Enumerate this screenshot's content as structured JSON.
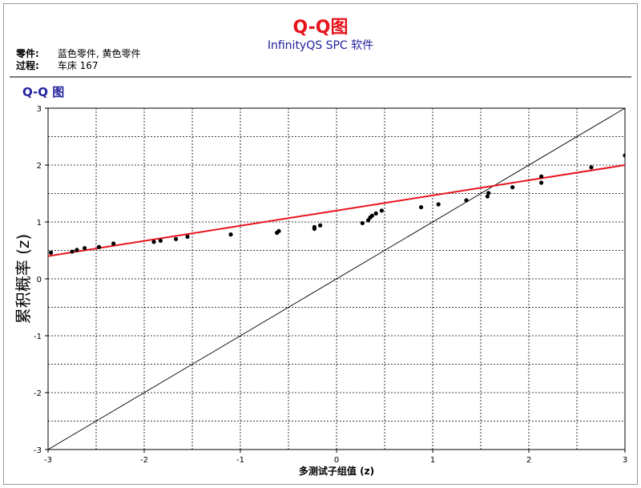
{
  "header": {
    "title": "Q-Q图",
    "subtitle": "InfinityQS SPC 软件",
    "part_label": "零件:",
    "part_value": "蓝色零件, 黄色零件",
    "process_label": "过程:",
    "process_value": "车床 167"
  },
  "panel_title": "Q-Q 图",
  "colors": {
    "title": "#e8141c",
    "subtitle": "#1f1f9e",
    "fit_line": "#e8141c",
    "reference_line": "#000000",
    "points": "#000000"
  },
  "chart_data": {
    "type": "scatter",
    "xlabel": "多测试子组值 (z)",
    "ylabel": "累积概率 (z)",
    "xlim": [
      -3,
      3
    ],
    "ylim": [
      -3,
      3
    ],
    "x_ticks": [
      -3,
      -2,
      -1,
      0,
      1,
      2,
      3
    ],
    "y_ticks": [
      -3,
      -2,
      -1,
      0,
      1,
      2,
      3
    ],
    "grid": true,
    "grid_step": 0.5,
    "points": [
      {
        "x": -2.97,
        "y": 0.46
      },
      {
        "x": -2.75,
        "y": 0.48
      },
      {
        "x": -2.7,
        "y": 0.51
      },
      {
        "x": -2.62,
        "y": 0.54
      },
      {
        "x": -2.47,
        "y": 0.56
      },
      {
        "x": -2.32,
        "y": 0.62
      },
      {
        "x": -1.9,
        "y": 0.65
      },
      {
        "x": -1.83,
        "y": 0.67
      },
      {
        "x": -1.67,
        "y": 0.7
      },
      {
        "x": -1.55,
        "y": 0.74
      },
      {
        "x": -1.1,
        "y": 0.78
      },
      {
        "x": -0.62,
        "y": 0.81
      },
      {
        "x": -0.6,
        "y": 0.84
      },
      {
        "x": -0.23,
        "y": 0.88
      },
      {
        "x": -0.23,
        "y": 0.91
      },
      {
        "x": -0.17,
        "y": 0.94
      },
      {
        "x": 0.27,
        "y": 0.98
      },
      {
        "x": 0.33,
        "y": 1.03
      },
      {
        "x": 0.35,
        "y": 1.08
      },
      {
        "x": 0.37,
        "y": 1.11
      },
      {
        "x": 0.41,
        "y": 1.15
      },
      {
        "x": 0.47,
        "y": 1.2
      },
      {
        "x": 0.88,
        "y": 1.26
      },
      {
        "x": 1.06,
        "y": 1.31
      },
      {
        "x": 1.35,
        "y": 1.38
      },
      {
        "x": 1.57,
        "y": 1.45
      },
      {
        "x": 1.58,
        "y": 1.51
      },
      {
        "x": 1.83,
        "y": 1.61
      },
      {
        "x": 2.13,
        "y": 1.69
      },
      {
        "x": 2.13,
        "y": 1.8
      },
      {
        "x": 2.65,
        "y": 1.96
      },
      {
        "x": 3.0,
        "y": 2.17
      }
    ],
    "fit_line": {
      "x": [
        -3,
        3
      ],
      "y": [
        0.4,
        2.0
      ]
    },
    "reference_line": {
      "x": [
        -3,
        3
      ],
      "y": [
        -3,
        3
      ]
    }
  }
}
